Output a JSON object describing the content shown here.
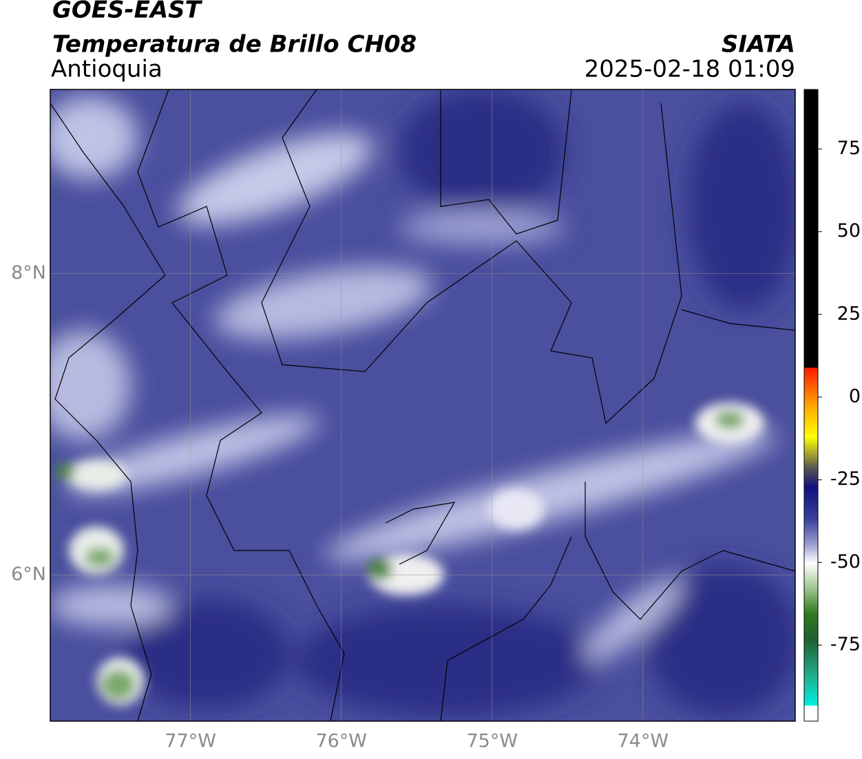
{
  "header": {
    "title": "GOES-EAST",
    "subtitle": "Temperatura de Brillo CH08",
    "region": "Antioquia",
    "source": "SIATA",
    "datetime": "2025-02-18 01:09"
  },
  "map": {
    "xlim": [
      -77.93,
      -72.99
    ],
    "ylim": [
      5.03,
      9.22
    ],
    "xticks": [
      {
        "value": -77,
        "label": "77°W"
      },
      {
        "value": -76,
        "label": "76°W"
      },
      {
        "value": -75,
        "label": "75°W"
      },
      {
        "value": -74,
        "label": "74°W"
      }
    ],
    "yticks": [
      {
        "value": 8,
        "label": "8°N"
      },
      {
        "value": 6,
        "label": "6°N"
      }
    ],
    "grid": true
  },
  "colorbar": {
    "lim": [
      -98,
      93
    ],
    "ticks": [
      75,
      50,
      25,
      0,
      -25,
      -50,
      -75
    ]
  }
}
